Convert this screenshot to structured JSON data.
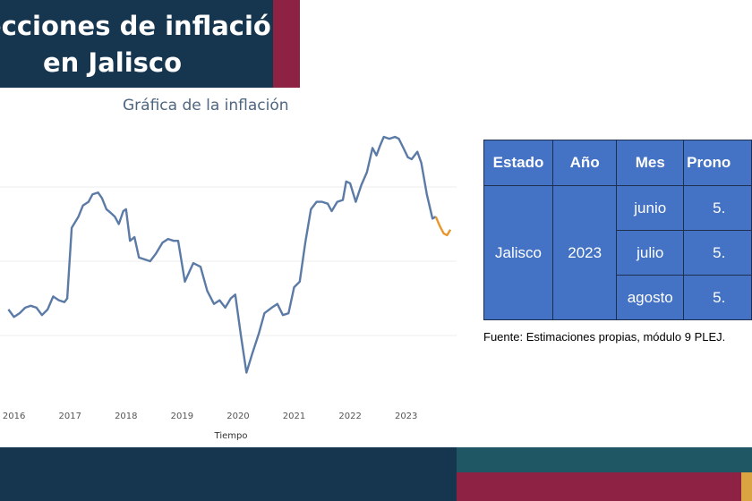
{
  "slide": {
    "title_line1": "ecciones de inflación",
    "title_line2": "en Jalisco"
  },
  "chart_data": {
    "type": "line",
    "title": "Gráfica de la inflación",
    "xlabel": "Tiempo",
    "ylabel": "",
    "x_ticks": [
      "2016",
      "2017",
      "2018",
      "2019",
      "2020",
      "2021",
      "2022",
      "2023"
    ],
    "grid": true,
    "series": [
      {
        "color": "#5b7ba6",
        "values": [
          [
            2015.95,
            2.7
          ],
          [
            2016.05,
            2.5
          ],
          [
            2016.15,
            2.6
          ],
          [
            2016.25,
            2.75
          ],
          [
            2016.35,
            2.8
          ],
          [
            2016.45,
            2.75
          ],
          [
            2016.55,
            2.55
          ],
          [
            2016.65,
            2.7
          ],
          [
            2016.75,
            3.05
          ],
          [
            2016.85,
            2.95
          ],
          [
            2016.95,
            2.9
          ],
          [
            2017.0,
            3.0
          ],
          [
            2017.08,
            4.9
          ],
          [
            2017.2,
            5.2
          ],
          [
            2017.28,
            5.5
          ],
          [
            2017.38,
            5.6
          ],
          [
            2017.45,
            5.8
          ],
          [
            2017.55,
            5.85
          ],
          [
            2017.62,
            5.7
          ],
          [
            2017.7,
            5.4
          ],
          [
            2017.78,
            5.3
          ],
          [
            2017.85,
            5.2
          ],
          [
            2017.92,
            5.0
          ],
          [
            2018.0,
            5.35
          ],
          [
            2018.05,
            5.4
          ],
          [
            2018.12,
            4.55
          ],
          [
            2018.2,
            4.65
          ],
          [
            2018.28,
            4.1
          ],
          [
            2018.38,
            4.05
          ],
          [
            2018.48,
            4.0
          ],
          [
            2018.58,
            4.2
          ],
          [
            2018.7,
            4.5
          ],
          [
            2018.8,
            4.6
          ],
          [
            2018.9,
            4.55
          ],
          [
            2018.98,
            4.55
          ],
          [
            2019.1,
            3.45
          ],
          [
            2019.25,
            3.95
          ],
          [
            2019.38,
            3.85
          ],
          [
            2019.5,
            3.2
          ],
          [
            2019.62,
            2.85
          ],
          [
            2019.72,
            2.95
          ],
          [
            2019.82,
            2.75
          ],
          [
            2019.92,
            3.0
          ],
          [
            2020.0,
            3.1
          ],
          [
            2020.1,
            2.0
          ],
          [
            2020.2,
            1.0
          ],
          [
            2020.3,
            1.5
          ],
          [
            2020.42,
            2.05
          ],
          [
            2020.52,
            2.6
          ],
          [
            2020.65,
            2.75
          ],
          [
            2020.75,
            2.85
          ],
          [
            2020.85,
            2.55
          ],
          [
            2020.95,
            2.6
          ],
          [
            2021.05,
            3.3
          ],
          [
            2021.15,
            3.45
          ],
          [
            2021.25,
            4.5
          ],
          [
            2021.35,
            5.4
          ],
          [
            2021.45,
            5.6
          ],
          [
            2021.55,
            5.6
          ],
          [
            2021.65,
            5.55
          ],
          [
            2021.72,
            5.35
          ],
          [
            2021.82,
            5.6
          ],
          [
            2021.92,
            5.65
          ],
          [
            2021.98,
            6.15
          ],
          [
            2022.05,
            6.1
          ],
          [
            2022.15,
            5.6
          ],
          [
            2022.25,
            6.05
          ],
          [
            2022.35,
            6.4
          ],
          [
            2022.45,
            7.05
          ],
          [
            2022.52,
            6.85
          ],
          [
            2022.58,
            7.1
          ],
          [
            2022.65,
            7.35
          ],
          [
            2022.75,
            7.3
          ],
          [
            2022.85,
            7.35
          ],
          [
            2022.92,
            7.3
          ],
          [
            2023.0,
            7.05
          ],
          [
            2023.08,
            6.8
          ],
          [
            2023.15,
            6.75
          ],
          [
            2023.25,
            6.95
          ],
          [
            2023.32,
            6.65
          ],
          [
            2023.42,
            5.8
          ],
          [
            2023.52,
            5.15
          ],
          [
            2023.58,
            5.2
          ]
        ]
      },
      {
        "color": "#e8962e",
        "values": [
          [
            2023.58,
            5.2
          ],
          [
            2023.65,
            4.95
          ],
          [
            2023.72,
            4.75
          ],
          [
            2023.78,
            4.7
          ],
          [
            2023.84,
            4.85
          ]
        ]
      }
    ]
  },
  "table": {
    "headers": [
      "Estado",
      "Año",
      "Mes",
      "Prono"
    ],
    "state": "Jalisco",
    "year": "2023",
    "months": [
      "junio",
      "julio",
      "agosto"
    ],
    "forecasts": [
      "5.",
      "5.",
      "5."
    ]
  },
  "source": "Fuente: Estimaciones propias, módulo 9 PLEJ."
}
